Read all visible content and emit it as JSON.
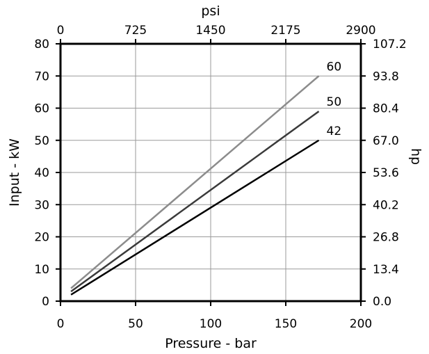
{
  "chart_data": {
    "type": "line",
    "title": "",
    "xlabel": "Pressure - bar",
    "ylabel": "Input - kW",
    "x2label": "psi",
    "y2label": "hp",
    "xlim": [
      0,
      200
    ],
    "ylim": [
      0,
      80
    ],
    "x2lim": [
      0,
      2900
    ],
    "y2lim": [
      0,
      107.2
    ],
    "xticks": [
      "0",
      "50",
      "100",
      "150",
      "200"
    ],
    "yticks": [
      "0",
      "10",
      "20",
      "30",
      "40",
      "50",
      "60",
      "70",
      "80"
    ],
    "x2ticks": [
      "0",
      "725",
      "1450",
      "2175",
      "2900"
    ],
    "y2ticks": [
      "0.0",
      "13.4",
      "26.8",
      "40.2",
      "53.6",
      "67.0",
      "80.4",
      "93.8",
      "107.2"
    ],
    "grid": true,
    "series": [
      {
        "name": "60",
        "color": "#8c8c8c",
        "points": [
          [
            7,
            4.0
          ],
          [
            172,
            70.0
          ]
        ]
      },
      {
        "name": "50",
        "color": "#3a3a3a",
        "points": [
          [
            7,
            3.0
          ],
          [
            172,
            59.0
          ]
        ]
      },
      {
        "name": "42",
        "color": "#000000",
        "points": [
          [
            7,
            2.0
          ],
          [
            172,
            50.0
          ]
        ]
      }
    ]
  }
}
